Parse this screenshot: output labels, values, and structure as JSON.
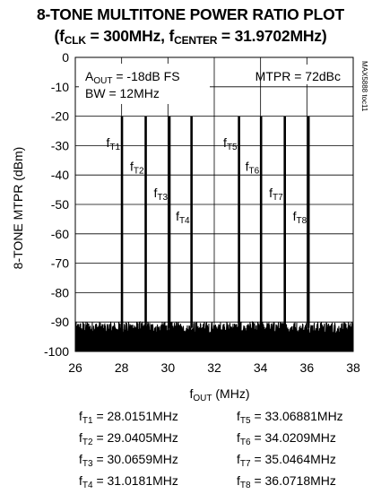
{
  "title": {
    "line1": "8-TONE MULTITONE POWER RATIO PLOT",
    "line2_pre": "(f",
    "line2_sub1": "CLK",
    "line2_mid": " = 300MHz, f",
    "line2_sub2": "CENTER",
    "line2_post": " = 31.9702MHz)"
  },
  "chart_data": {
    "type": "line",
    "title": "8-TONE MULTITONE POWER RATIO PLOT (fCLK = 300MHz, fCENTER = 31.9702MHz)",
    "xlabel_main": "f",
    "xlabel_sub": "OUT",
    "xlabel_unit": " (MHz)",
    "ylabel": "8-TONE MTPR (dBm)",
    "xlim": [
      26,
      38
    ],
    "ylim": [
      -100,
      0
    ],
    "xticks": [
      "26",
      "28",
      "30",
      "32",
      "34",
      "36",
      "38"
    ],
    "yticks": [
      "0",
      "-10",
      "-20",
      "-30",
      "-40",
      "-50",
      "-60",
      "-70",
      "-80",
      "-90",
      "-100"
    ],
    "grid": true,
    "noise_floor": -92,
    "tones": [
      {
        "label": "T1",
        "freq": 28.0151,
        "power": -20
      },
      {
        "label": "T2",
        "freq": 29.0405,
        "power": -20
      },
      {
        "label": "T3",
        "freq": 30.0659,
        "power": -20
      },
      {
        "label": "T4",
        "freq": 31.0181,
        "power": -20
      },
      {
        "label": "T5",
        "freq": 33.06881,
        "power": -20
      },
      {
        "label": "T6",
        "freq": 34.0209,
        "power": -20
      },
      {
        "label": "T7",
        "freq": 35.0464,
        "power": -20
      },
      {
        "label": "T8",
        "freq": 36.0718,
        "power": -20
      }
    ],
    "tone_label_y": [
      -29,
      -37,
      -46,
      -54,
      -29,
      -37,
      -46,
      -54
    ],
    "annotations": {
      "aout_pre": "A",
      "aout_sub": "OUT",
      "aout_post": " = -18dB FS",
      "bw": "BW = 12MHz",
      "mtpr": "MTPR = 72dBc",
      "figure_code": "MAX5888 toc11"
    }
  },
  "legend": {
    "left": [
      {
        "sub": "T1",
        "text": " = 28.0151MHz"
      },
      {
        "sub": "T2",
        "text": " = 29.0405MHz"
      },
      {
        "sub": "T3",
        "text": " = 30.0659MHz"
      },
      {
        "sub": "T4",
        "text": " = 31.0181MHz"
      }
    ],
    "right": [
      {
        "sub": "T5",
        "text": " = 33.06881MHz"
      },
      {
        "sub": "T6",
        "text": " = 34.0209MHz"
      },
      {
        "sub": "T7",
        "text": " = 35.0464MHz"
      },
      {
        "sub": "T8",
        "text": " = 36.0718MHz"
      }
    ],
    "prefix": "f"
  }
}
